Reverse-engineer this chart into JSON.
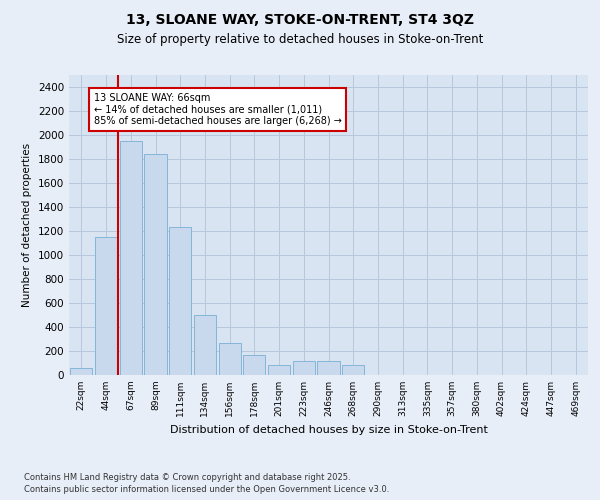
{
  "title": "13, SLOANE WAY, STOKE-ON-TRENT, ST4 3QZ",
  "subtitle": "Size of property relative to detached houses in Stoke-on-Trent",
  "xlabel": "Distribution of detached houses by size in Stoke-on-Trent",
  "ylabel": "Number of detached properties",
  "categories": [
    "22sqm",
    "44sqm",
    "67sqm",
    "89sqm",
    "111sqm",
    "134sqm",
    "156sqm",
    "178sqm",
    "201sqm",
    "223sqm",
    "246sqm",
    "268sqm",
    "290sqm",
    "313sqm",
    "335sqm",
    "357sqm",
    "380sqm",
    "402sqm",
    "424sqm",
    "447sqm",
    "469sqm"
  ],
  "values": [
    60,
    1150,
    1950,
    1840,
    1230,
    500,
    270,
    165,
    80,
    120,
    120,
    85,
    0,
    0,
    0,
    0,
    0,
    0,
    0,
    0,
    0
  ],
  "bar_color": "#c8d9ee",
  "bar_edge_color": "#7bafd4",
  "vline_color": "#cc0000",
  "annotation_text": "13 SLOANE WAY: 66sqm\n← 14% of detached houses are smaller (1,011)\n85% of semi-detached houses are larger (6,268) →",
  "annotation_box_color": "#ffffff",
  "annotation_border_color": "#cc0000",
  "ylim": [
    0,
    2500
  ],
  "yticks": [
    0,
    200,
    400,
    600,
    800,
    1000,
    1200,
    1400,
    1600,
    1800,
    2000,
    2200,
    2400
  ],
  "grid_color": "#b8c8dc",
  "background_color": "#d8e4f2",
  "fig_background_color": "#e8eef8",
  "footer_line1": "Contains HM Land Registry data © Crown copyright and database right 2025.",
  "footer_line2": "Contains public sector information licensed under the Open Government Licence v3.0."
}
